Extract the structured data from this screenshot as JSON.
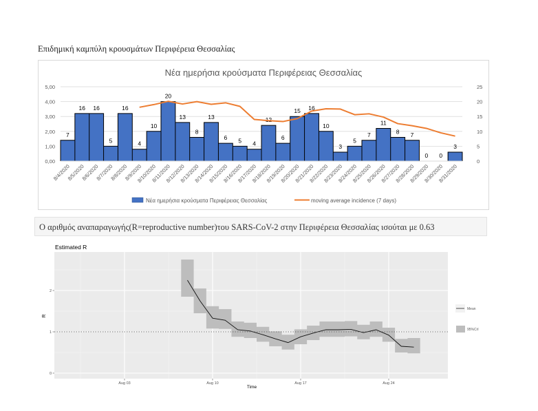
{
  "page": {
    "heading": "Επιδημική καμπύλη κρουσμάτων Περιφέρεια Θεσσαλίας",
    "r_banner": "Ο αριθμός αναπαραγωγής(R=reproductive number)του SARS-CoV-2 στην Περιφέρεια Θεσσαλίας ισούται με 0.63"
  },
  "colors": {
    "bar": "#4472c4",
    "line": "#ed7d31",
    "ribbon": "#bdbdbd",
    "panel": "#ebebeb"
  },
  "chart_data": [
    {
      "type": "bar",
      "title": "Νέα ημερήσια κρούσματα Περιφέρειας Θεσσαλίας",
      "categories": [
        "8/4/2020",
        "8/5/2020",
        "8/6/2020",
        "8/7/2020",
        "8/8/2020",
        "8/9/2020",
        "8/10/2020",
        "8/11/2020",
        "8/12/2020",
        "8/13/2020",
        "8/14/2020",
        "8/15/2020",
        "8/16/2020",
        "8/17/2020",
        "8/18/2020",
        "8/19/2020",
        "8/20/2020",
        "8/21/2020",
        "8/22/2020",
        "8/23/2020",
        "8/24/2020",
        "8/25/2020",
        "8/26/2020",
        "8/27/2020",
        "8/28/2020",
        "8/29/2020",
        "8/30/2020",
        "8/31/2020"
      ],
      "series": [
        {
          "name": "Νέα ημερήσια κρούσματα Περιφέρειας Θεσσαλίας",
          "kind": "bar",
          "axis": "left",
          "values": [
            7,
            16,
            16,
            5,
            16,
            4,
            10,
            20,
            13,
            8,
            13,
            6,
            5,
            4,
            12,
            6,
            15,
            16,
            10,
            3,
            5,
            7,
            11,
            8,
            7,
            0,
            0,
            3
          ],
          "labels": [
            "7",
            "16",
            "16",
            "5",
            "16",
            "4",
            "10",
            "20",
            "13",
            "8",
            "13",
            "6",
            "5",
            "4",
            "12",
            "6",
            "15",
            "16",
            "10",
            "3",
            "5",
            "7",
            "11",
            "8",
            "7",
            "0",
            "0",
            "3"
          ]
        },
        {
          "name": "moving average incidence (7 days)",
          "kind": "line",
          "axis": "right",
          "values": [
            null,
            null,
            null,
            null,
            null,
            18.1,
            19.0,
            20.1,
            19.2,
            20.0,
            19.1,
            19.6,
            18.4,
            14.0,
            13.6,
            13.3,
            14.3,
            16.8,
            17.6,
            17.5,
            15.6,
            15.9,
            14.8,
            12.6,
            11.9,
            11.0,
            9.5,
            8.4
          ]
        }
      ],
      "left_axis": {
        "ticks": [
          "0,00",
          "1,00",
          "2,00",
          "3,00",
          "4,00",
          "5,00"
        ],
        "range": [
          0,
          5
        ]
      },
      "right_axis": {
        "ticks": [
          "0",
          "5",
          "10",
          "15",
          "20",
          "25"
        ],
        "range": [
          0,
          25
        ]
      },
      "legend": [
        "Νέα ημερήσια κρούσματα Περιφέρειας Θεσσαλίας",
        "moving average incidence (7 days)"
      ],
      "legend_position": "bottom",
      "grid": true
    },
    {
      "type": "line",
      "title": "Estimated R",
      "xlabel": "Time",
      "ylabel": "R",
      "x_ticks": [
        "Aug 03",
        "Aug 10",
        "Aug 17",
        "Aug 24"
      ],
      "y_ticks": [
        "0",
        "1",
        "2"
      ],
      "ylim": [
        -0.02,
        2.95
      ],
      "reference_line": 1,
      "x_days": [
        8,
        9,
        10,
        11,
        12,
        13,
        14,
        15,
        16,
        17,
        18,
        19,
        20,
        21,
        22,
        23,
        24,
        25,
        26
      ],
      "mean": [
        2.25,
        1.75,
        1.33,
        1.28,
        1.05,
        1.02,
        0.93,
        0.83,
        0.74,
        0.88,
        0.97,
        1.05,
        1.05,
        1.06,
        0.98,
        1.05,
        0.92,
        0.65,
        0.63
      ],
      "lower": [
        1.85,
        1.45,
        1.08,
        1.07,
        0.88,
        0.85,
        0.76,
        0.65,
        0.57,
        0.7,
        0.8,
        0.88,
        0.88,
        0.89,
        0.82,
        0.88,
        0.76,
        0.5,
        0.48
      ],
      "upper": [
        2.75,
        2.05,
        1.62,
        1.55,
        1.25,
        1.22,
        1.12,
        1.01,
        0.93,
        1.06,
        1.15,
        1.25,
        1.25,
        1.26,
        1.17,
        1.25,
        1.1,
        0.83,
        0.85
      ],
      "legend": [
        "Mean",
        "95%CrI"
      ],
      "legend_position": "right",
      "grid": true
    }
  ]
}
